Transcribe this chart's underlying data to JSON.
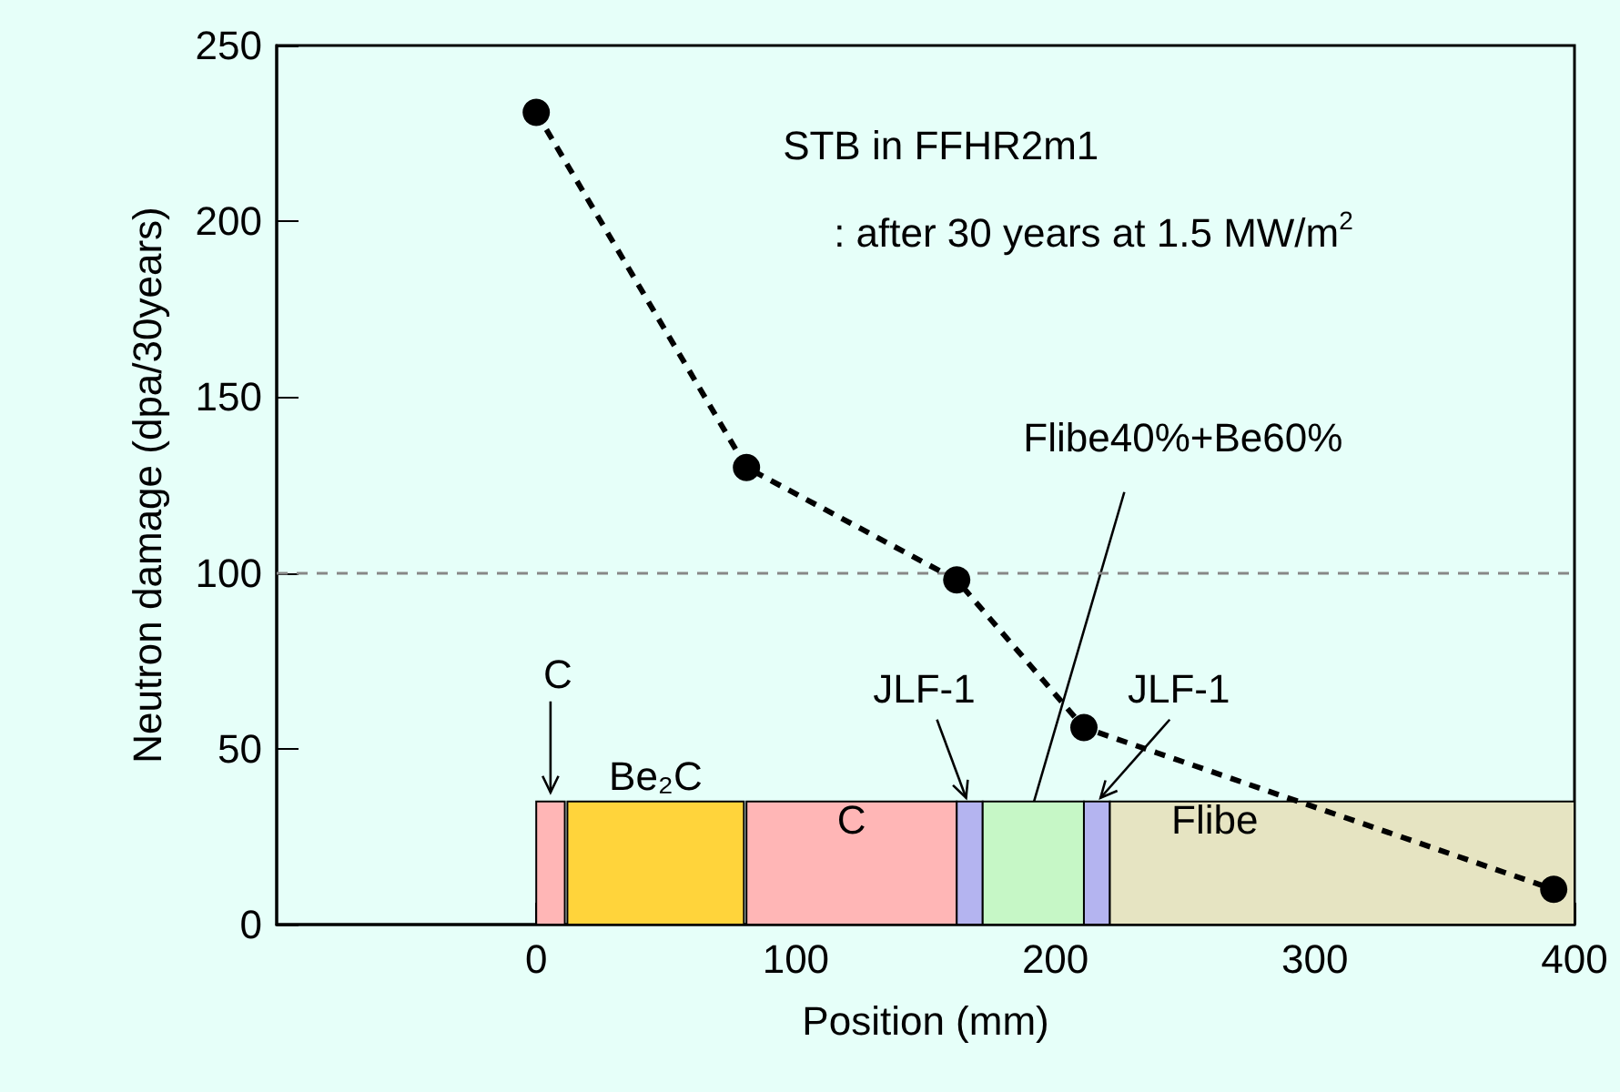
{
  "chart_data": {
    "type": "line",
    "xlabel": "Position (mm)",
    "ylabel": "Neutron damage (dpa/30years)",
    "x": [
      0,
      81,
      162,
      211,
      392
    ],
    "series": [
      {
        "color": "#000000",
        "values": [
          231,
          130,
          98,
          56,
          10
        ]
      }
    ],
    "marker": "circle",
    "line_style": "dashed",
    "xlim": [
      -100,
      400
    ],
    "xticks": [
      0,
      100,
      200,
      300,
      400
    ],
    "ylim": [
      0,
      250
    ],
    "yticks": [
      0,
      50,
      100,
      150,
      200,
      250
    ],
    "ref_lines": [
      {
        "axis": "y",
        "value": 100,
        "color": "#888888",
        "line_style": "dashed"
      }
    ],
    "bands": [
      {
        "axis": "x",
        "from": 0,
        "to": 11,
        "label": "C",
        "color": "#ffb6b6"
      },
      {
        "axis": "x",
        "from": 12,
        "to": 80,
        "label": "Be₂C",
        "color": "#ffd43b"
      },
      {
        "axis": "x",
        "from": 81,
        "to": 162,
        "label": "C",
        "color": "#ffb6b6"
      },
      {
        "axis": "x",
        "from": 162,
        "to": 172,
        "label": "JLF-1",
        "color": "#b4b4f0"
      },
      {
        "axis": "x",
        "from": 172,
        "to": 211,
        "label": "Flibe40%+Be60%",
        "color": "#c6f7c6"
      },
      {
        "axis": "x",
        "from": 211,
        "to": 221,
        "label": "JLF-1",
        "color": "#b4b4f0"
      },
      {
        "axis": "x",
        "from": 221,
        "to": 400,
        "label": "Flibe",
        "color": "#e6e4c2"
      }
    ],
    "annotations": [
      "STB in FFHR2m1",
      ": after 30 years at 1.5 MW/m$^{2}$"
    ]
  }
}
